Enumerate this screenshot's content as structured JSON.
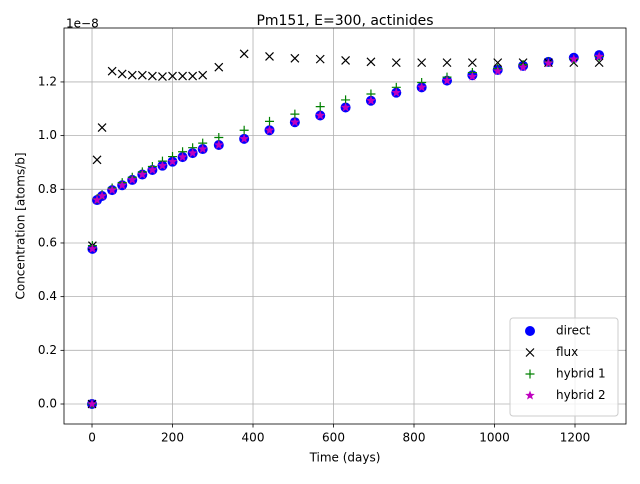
{
  "chart_data": {
    "type": "scatter",
    "title": "Pm151, E=300, actinides",
    "xlabel": "Time (days)",
    "ylabel": "Concentration [atoms/b]",
    "y_offset_label": "1e−8",
    "x": [
      0,
      1,
      12.5,
      25,
      50,
      75,
      100,
      125,
      150,
      175,
      200,
      225,
      250,
      275,
      315,
      378,
      441,
      504,
      567,
      630,
      693,
      756,
      819,
      882,
      945,
      1008,
      1071,
      1134,
      1197,
      1260
    ],
    "series": [
      {
        "name": "direct",
        "color": "#0000ff",
        "marker": "circle",
        "values": [
          0,
          0.578,
          0.76,
          0.775,
          0.797,
          0.815,
          0.835,
          0.855,
          0.872,
          0.888,
          0.903,
          0.92,
          0.935,
          0.95,
          0.965,
          0.988,
          1.02,
          1.05,
          1.075,
          1.105,
          1.13,
          1.16,
          1.18,
          1.205,
          1.225,
          1.245,
          1.26,
          1.275,
          1.29,
          1.3
        ]
      },
      {
        "name": "flux",
        "color": "#000000",
        "marker": "x",
        "values": [
          0,
          0.59,
          0.91,
          1.03,
          1.24,
          1.23,
          1.225,
          1.225,
          1.222,
          1.22,
          1.222,
          1.222,
          1.222,
          1.225,
          1.255,
          1.305,
          1.295,
          1.288,
          1.285,
          1.28,
          1.275,
          1.272,
          1.272,
          1.272,
          1.272,
          1.272,
          1.272,
          1.272,
          1.272,
          1.272
        ]
      },
      {
        "name": "hybrid 1",
        "color": "#008000",
        "marker": "plus",
        "values": [
          0,
          0.59,
          0.765,
          0.78,
          0.805,
          0.825,
          0.845,
          0.865,
          0.885,
          0.905,
          0.922,
          0.94,
          0.955,
          0.972,
          0.993,
          1.02,
          1.053,
          1.08,
          1.108,
          1.133,
          1.155,
          1.18,
          1.198,
          1.218,
          1.235,
          1.25,
          1.265,
          1.275,
          1.285,
          1.295
        ]
      },
      {
        "name": "hybrid 2",
        "color": "#bf00bf",
        "marker": "star",
        "values": [
          0,
          0.578,
          0.76,
          0.775,
          0.797,
          0.815,
          0.835,
          0.855,
          0.872,
          0.888,
          0.903,
          0.92,
          0.935,
          0.95,
          0.965,
          0.988,
          1.02,
          1.05,
          1.075,
          1.105,
          1.13,
          1.16,
          1.18,
          1.205,
          1.22,
          1.24,
          1.255,
          1.27,
          1.285,
          1.295
        ]
      }
    ],
    "xlim": [
      -69.6,
      1326.7
    ],
    "ylim": [
      -0.0745,
      1.401
    ],
    "xticks": [
      0,
      200,
      400,
      600,
      800,
      1000,
      1200
    ],
    "yticks": [
      {
        "value": 0,
        "label": "0.0"
      },
      0.2,
      0.4,
      0.6,
      0.8,
      {
        "value": 1,
        "label": "1.0"
      },
      1.2
    ],
    "grid": true,
    "legend": "lower right"
  }
}
